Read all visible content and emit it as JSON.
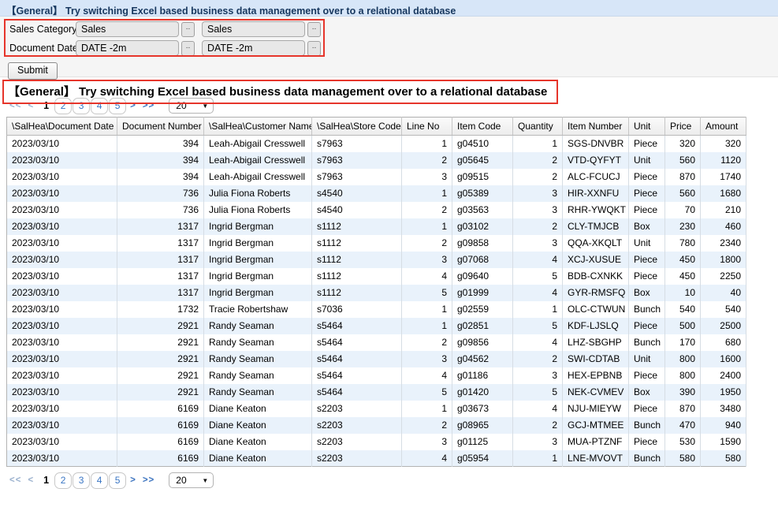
{
  "topbar": {
    "title": "【General】 Try switching Excel based business data management over to a relational database"
  },
  "form": {
    "rows": [
      {
        "label": "Sales Category:",
        "value1": "Sales",
        "value2": "Sales"
      },
      {
        "label": "Document Date:",
        "value1": "DATE -2m",
        "value2": "DATE -2m"
      }
    ],
    "picker_button_label": "..",
    "submit_label": "Submit"
  },
  "section_title": "【General】 Try switching Excel based business data management over to a relational database",
  "pagination": {
    "first": "<<",
    "prev": "<",
    "next": ">",
    "last": ">>",
    "current_page": "1",
    "pages": [
      "2",
      "3",
      "4",
      "5"
    ],
    "page_size": "20",
    "caret": "▼"
  },
  "table": {
    "columns": [
      "\\SalHea\\Document Date",
      "Document Number",
      "\\SalHea\\Customer Name",
      "\\SalHea\\Store Code",
      "Line No",
      "Item Code",
      "Quantity",
      "Item Number",
      "Unit",
      "Price",
      "Amount"
    ],
    "rows": [
      [
        "2023/03/10",
        "394",
        "Leah-Abigail Cresswell",
        "s7963",
        "1",
        "g04510",
        "1",
        "SGS-DNVBR",
        "Piece",
        "320",
        "320"
      ],
      [
        "2023/03/10",
        "394",
        "Leah-Abigail Cresswell",
        "s7963",
        "2",
        "g05645",
        "2",
        "VTD-QYFYT",
        "Unit",
        "560",
        "1120"
      ],
      [
        "2023/03/10",
        "394",
        "Leah-Abigail Cresswell",
        "s7963",
        "3",
        "g09515",
        "2",
        "ALC-FCUCJ",
        "Piece",
        "870",
        "1740"
      ],
      [
        "2023/03/10",
        "736",
        "Julia Fiona Roberts",
        "s4540",
        "1",
        "g05389",
        "3",
        "HIR-XXNFU",
        "Piece",
        "560",
        "1680"
      ],
      [
        "2023/03/10",
        "736",
        "Julia Fiona Roberts",
        "s4540",
        "2",
        "g03563",
        "3",
        "RHR-YWQKT",
        "Piece",
        "70",
        "210"
      ],
      [
        "2023/03/10",
        "1317",
        "Ingrid Bergman",
        "s1112",
        "1",
        "g03102",
        "2",
        "CLY-TMJCB",
        "Box",
        "230",
        "460"
      ],
      [
        "2023/03/10",
        "1317",
        "Ingrid Bergman",
        "s1112",
        "2",
        "g09858",
        "3",
        "QQA-XKQLT",
        "Unit",
        "780",
        "2340"
      ],
      [
        "2023/03/10",
        "1317",
        "Ingrid Bergman",
        "s1112",
        "3",
        "g07068",
        "4",
        "XCJ-XUSUE",
        "Piece",
        "450",
        "1800"
      ],
      [
        "2023/03/10",
        "1317",
        "Ingrid Bergman",
        "s1112",
        "4",
        "g09640",
        "5",
        "BDB-CXNKK",
        "Piece",
        "450",
        "2250"
      ],
      [
        "2023/03/10",
        "1317",
        "Ingrid Bergman",
        "s1112",
        "5",
        "g01999",
        "4",
        "GYR-RMSFQ",
        "Box",
        "10",
        "40"
      ],
      [
        "2023/03/10",
        "1732",
        "Tracie Robertshaw",
        "s7036",
        "1",
        "g02559",
        "1",
        "OLC-CTWUN",
        "Bunch",
        "540",
        "540"
      ],
      [
        "2023/03/10",
        "2921",
        "Randy Seaman",
        "s5464",
        "1",
        "g02851",
        "5",
        "KDF-LJSLQ",
        "Piece",
        "500",
        "2500"
      ],
      [
        "2023/03/10",
        "2921",
        "Randy Seaman",
        "s5464",
        "2",
        "g09856",
        "4",
        "LHZ-SBGHP",
        "Bunch",
        "170",
        "680"
      ],
      [
        "2023/03/10",
        "2921",
        "Randy Seaman",
        "s5464",
        "3",
        "g04562",
        "2",
        "SWI-CDTAB",
        "Unit",
        "800",
        "1600"
      ],
      [
        "2023/03/10",
        "2921",
        "Randy Seaman",
        "s5464",
        "4",
        "g01186",
        "3",
        "HEX-EPBNB",
        "Piece",
        "800",
        "2400"
      ],
      [
        "2023/03/10",
        "2921",
        "Randy Seaman",
        "s5464",
        "5",
        "g01420",
        "5",
        "NEK-CVMEV",
        "Box",
        "390",
        "1950"
      ],
      [
        "2023/03/10",
        "6169",
        "Diane Keaton",
        "s2203",
        "1",
        "g03673",
        "4",
        "NJU-MIEYW",
        "Piece",
        "870",
        "3480"
      ],
      [
        "2023/03/10",
        "6169",
        "Diane Keaton",
        "s2203",
        "2",
        "g08965",
        "2",
        "GCJ-MTMEE",
        "Bunch",
        "470",
        "940"
      ],
      [
        "2023/03/10",
        "6169",
        "Diane Keaton",
        "s2203",
        "3",
        "g01125",
        "3",
        "MUA-PTZNF",
        "Piece",
        "530",
        "1590"
      ],
      [
        "2023/03/10",
        "6169",
        "Diane Keaton",
        "s2203",
        "4",
        "g05954",
        "1",
        "LNE-MVOVT",
        "Bunch",
        "580",
        "580"
      ]
    ],
    "right_aligned_columns": [
      1,
      4,
      6,
      9,
      10
    ]
  }
}
